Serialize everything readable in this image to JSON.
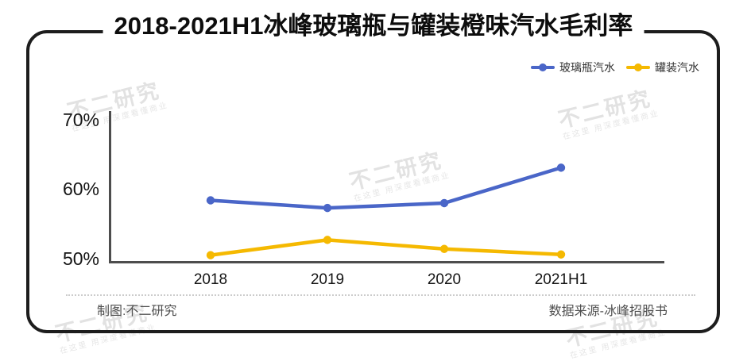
{
  "title": "2018-2021H1冰峰玻璃瓶与罐装橙味汽水毛利率",
  "footer": {
    "left": "制图:不二研究",
    "right": "数据来源-冰峰招股书"
  },
  "watermark": {
    "main": "不二研究",
    "sub": "在这里 用深度看懂商业"
  },
  "colors": {
    "glass_series": "#4a66c8",
    "can_series": "#f5b901",
    "axis": "#4d4d4d",
    "frame": "#1d1d1d"
  },
  "chart_data": {
    "type": "line",
    "title": "2018-2021H1冰峰玻璃瓶与罐装橙味汽水毛利率",
    "categories": [
      "2018",
      "2019",
      "2020",
      "2021H1"
    ],
    "series": [
      {
        "name": "玻璃瓶汽水",
        "color": "#4a66c8",
        "values": [
          58.4,
          57.3,
          58.0,
          63.1
        ]
      },
      {
        "name": "罐装汽水",
        "color": "#f5b901",
        "values": [
          50.5,
          52.7,
          51.4,
          50.6
        ]
      }
    ],
    "yticks": [
      "70%",
      "60%",
      "50%"
    ],
    "ytick_values": [
      70,
      60,
      50
    ],
    "ylim": [
      48.8,
      72
    ],
    "xlabel": "",
    "ylabel": "",
    "grid": false,
    "legend_position": "top-right"
  }
}
